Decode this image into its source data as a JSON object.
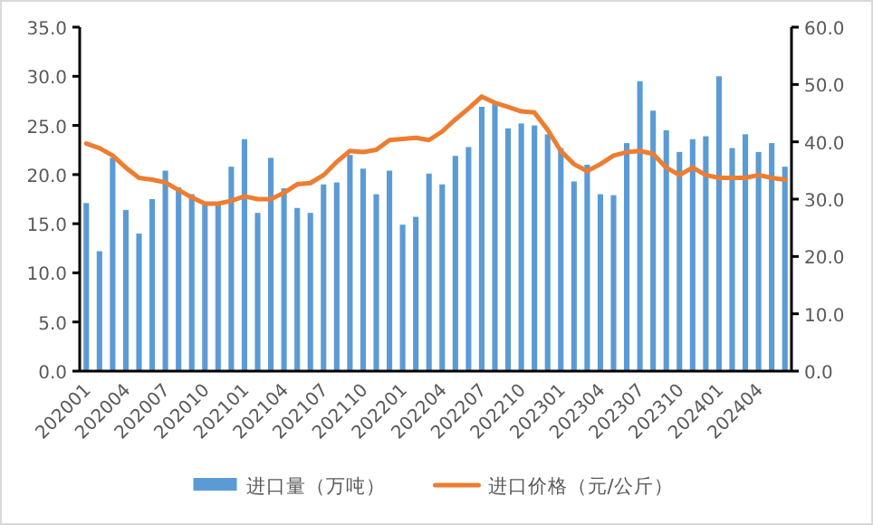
{
  "chart_data": {
    "type": "bar",
    "categories": [
      "202001",
      null,
      null,
      "202004",
      null,
      null,
      "202007",
      null,
      null,
      "202010",
      null,
      null,
      "202101",
      null,
      null,
      "202104",
      null,
      null,
      "202107",
      null,
      null,
      "202110",
      null,
      null,
      "202201",
      null,
      null,
      "202204",
      null,
      null,
      "202207",
      null,
      null,
      "202210",
      null,
      null,
      "202301",
      null,
      null,
      "202304",
      null,
      null,
      "202307",
      null,
      null,
      "202310",
      null,
      null,
      "202401",
      null,
      null,
      "202404",
      null,
      null
    ],
    "series": [
      {
        "name": "进口量（万吨）",
        "color": "#5b9bd5",
        "values": [
          17.1,
          12.2,
          21.7,
          16.4,
          14.0,
          17.5,
          20.4,
          18.7,
          18.0,
          16.9,
          16.9,
          20.8,
          23.6,
          16.1,
          21.7,
          18.6,
          16.6,
          16.1,
          19.0,
          19.2,
          22.0,
          20.6,
          18.0,
          20.4,
          14.9,
          15.7,
          20.1,
          19.0,
          21.9,
          22.8,
          26.9,
          27.2,
          24.7,
          25.2,
          25.0,
          24.1,
          22.7,
          19.3,
          21.0,
          18.0,
          17.9,
          23.2,
          29.5,
          26.5,
          24.5,
          22.3,
          23.6,
          23.9,
          30.0,
          22.7,
          24.1,
          22.3,
          23.2,
          20.8
        ]
      },
      {
        "name": "进口价格（元/公斤）",
        "type": "line",
        "axis": "y2",
        "color": "#ed7d31",
        "values": [
          39.7,
          38.9,
          37.6,
          35.5,
          33.7,
          33.4,
          32.9,
          31.6,
          30.3,
          29.2,
          29.2,
          29.7,
          30.5,
          30.0,
          30.0,
          31.1,
          32.6,
          32.8,
          34.2,
          36.5,
          38.4,
          38.2,
          38.6,
          40.3,
          40.5,
          40.7,
          40.3,
          41.8,
          43.9,
          45.8,
          47.9,
          46.8,
          46.1,
          45.3,
          45.1,
          42.1,
          38.4,
          36.1,
          34.9,
          36.1,
          37.6,
          38.2,
          38.4,
          37.9,
          35.5,
          34.2,
          35.5,
          34.2,
          33.7,
          33.7,
          33.7,
          34.2,
          33.7,
          33.4
        ]
      }
    ],
    "ylim": [
      0,
      35
    ],
    "yticks": [
      {
        "value": 0,
        "label": "0.0"
      },
      {
        "value": 5,
        "label": "5.0"
      },
      {
        "value": 10,
        "label": "10.0"
      },
      {
        "value": 15,
        "label": "15.0"
      },
      {
        "value": 20,
        "label": "20.0"
      },
      {
        "value": 25,
        "label": "25.0"
      },
      {
        "value": 30,
        "label": "30.0"
      },
      {
        "value": 35,
        "label": "35.0"
      }
    ],
    "y2lim": [
      0,
      60
    ],
    "y2ticks": [
      {
        "value": 0,
        "label": "0.0"
      },
      {
        "value": 10,
        "label": "10.0"
      },
      {
        "value": 20,
        "label": "20.0"
      },
      {
        "value": 30,
        "label": "30.0"
      },
      {
        "value": 40,
        "label": "40.0"
      },
      {
        "value": 50,
        "label": "50.0"
      },
      {
        "value": 60,
        "label": "60.0"
      }
    ],
    "legend": "bottom",
    "marker": "none",
    "grid": false
  }
}
